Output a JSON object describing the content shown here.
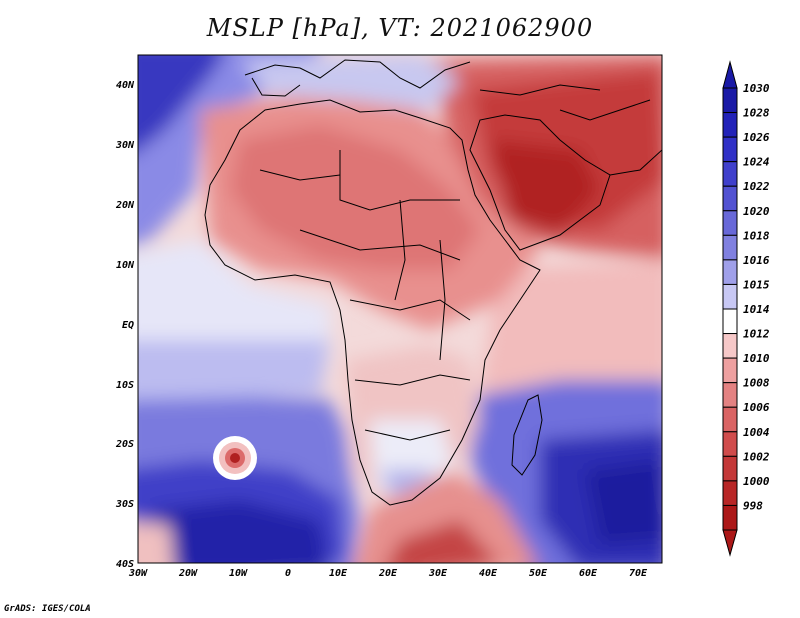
{
  "title": "MSLP [hPa], VT: 2021062900",
  "credit": "GrADS: IGES/COLA",
  "map": {
    "lat_labels": [
      "40N",
      "30N",
      "20N",
      "10N",
      "EQ",
      "10S",
      "20S",
      "30S",
      "40S"
    ],
    "lon_labels": [
      "30W",
      "20W",
      "10W",
      "0",
      "10E",
      "20E",
      "30E",
      "40E",
      "50E",
      "60E",
      "70E"
    ]
  },
  "colorbar": {
    "levels": [
      "1030",
      "1028",
      "1026",
      "1024",
      "1022",
      "1020",
      "1018",
      "1016",
      "1015",
      "1014",
      "1012",
      "1010",
      "1008",
      "1006",
      "1004",
      "1002",
      "1000",
      "998"
    ],
    "colors": [
      "#1a1aa6",
      "#2222b8",
      "#3030c6",
      "#4040cc",
      "#5252d2",
      "#6868d8",
      "#8080e0",
      "#a0a0ea",
      "#c8c8f4",
      "#ffffff",
      "#f6c8c8",
      "#eea0a0",
      "#e48282",
      "#da6464",
      "#d04c4c",
      "#c43838",
      "#b82626",
      "#ac1818"
    ]
  }
}
